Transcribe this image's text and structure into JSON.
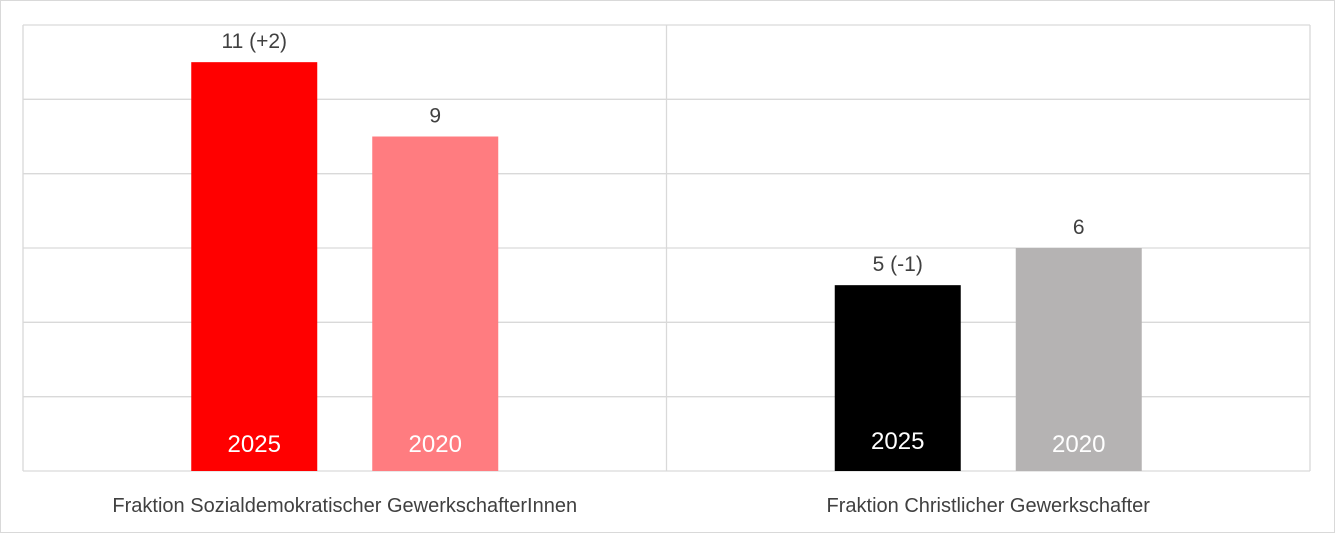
{
  "chart_data": {
    "type": "bar",
    "categories": [
      "Fraktion Sozialdemokratischer GewerkschafterInnen",
      "Fraktion Christlicher Gewerkschafter"
    ],
    "ylim": [
      0,
      12
    ],
    "grid": true,
    "legend": "none",
    "bars": [
      {
        "category": 0,
        "year": "2025",
        "value": 11,
        "label": "11 (+2)",
        "color": "#ff0000"
      },
      {
        "category": 0,
        "year": "2020",
        "value": 9,
        "label": "9",
        "color": "#ff7c80"
      },
      {
        "category": 1,
        "year": "2025",
        "value": 5,
        "label": "5 (-1)",
        "color": "#000000"
      },
      {
        "category": 1,
        "year": "2020",
        "value": 6,
        "label": "6",
        "color": "#b5b3b3"
      }
    ]
  }
}
